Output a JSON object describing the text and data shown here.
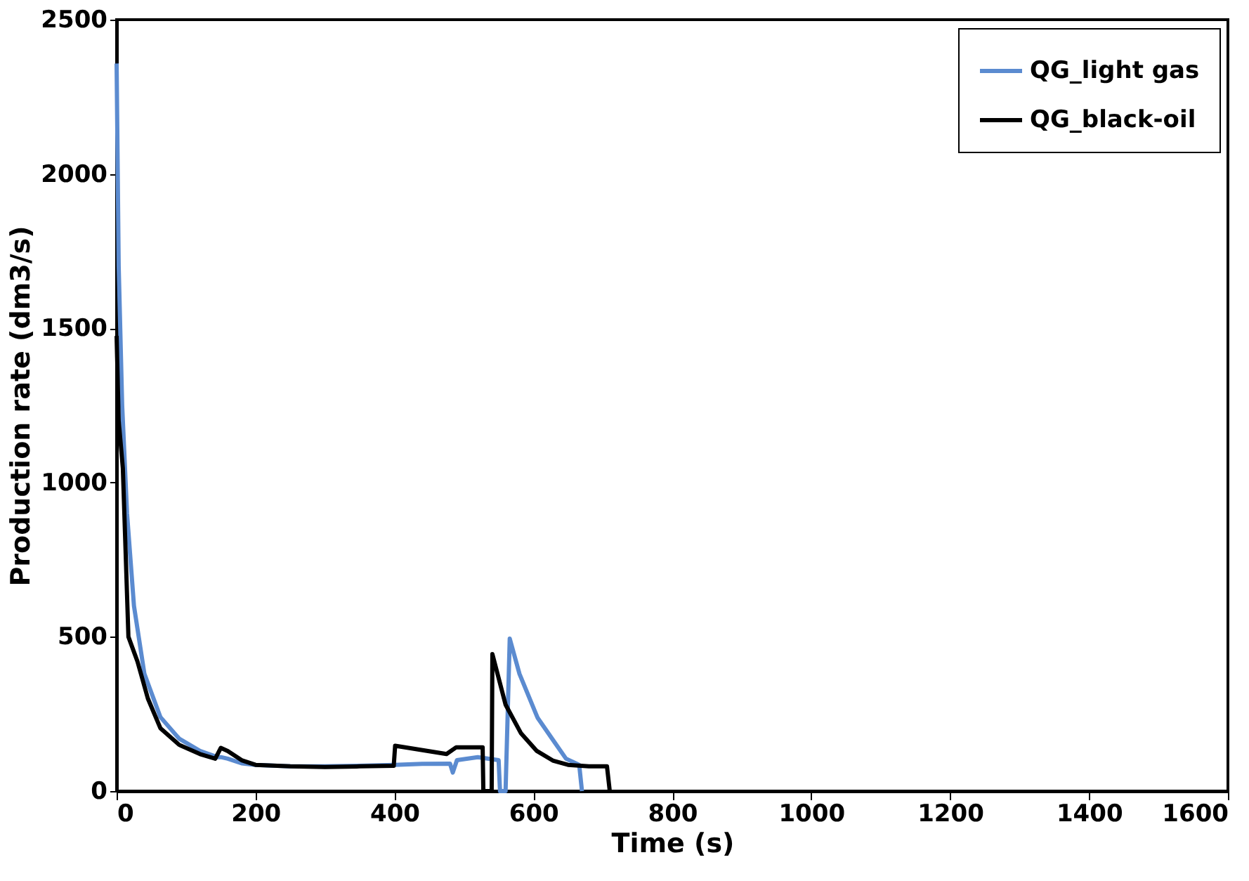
{
  "chart_data": {
    "type": "line",
    "xlabel": "Time (s)",
    "ylabel": "Production rate (dm3/s)",
    "xlim": [
      0,
      1600
    ],
    "ylim": [
      0,
      2500
    ],
    "xticks": [
      0,
      200,
      400,
      600,
      800,
      1000,
      1200,
      1400,
      1600
    ],
    "yticks": [
      0,
      500,
      1000,
      1500,
      2000,
      2500
    ],
    "grid": false,
    "legend": "top right",
    "marker": "none",
    "line_style": "solid",
    "series": [
      {
        "name": "QG_light gas",
        "color": "#5b8bd0",
        "x": [
          0,
          3,
          8,
          15,
          25,
          40,
          63,
          90,
          120,
          145,
          150,
          160,
          180,
          200,
          250,
          300,
          350,
          400,
          440,
          480,
          484,
          490,
          520,
          550,
          552,
          560,
          566,
          580,
          606,
          630,
          647,
          666,
          670
        ],
        "values": [
          2358,
          1700,
          1250,
          900,
          600,
          380,
          240,
          170,
          130,
          110,
          110,
          105,
          90,
          85,
          80,
          80,
          82,
          85,
          88,
          89,
          60,
          100,
          110,
          100,
          0,
          0,
          494,
          380,
          238,
          160,
          105,
          85,
          0
        ]
      },
      {
        "name": "QG_black-oil",
        "color": "#000000",
        "x": [
          0,
          3,
          9,
          17,
          30,
          45,
          63,
          90,
          120,
          142,
          150,
          160,
          180,
          200,
          250,
          300,
          350,
          399,
          401,
          420,
          475,
          489,
          527,
          528,
          540,
          541,
          560,
          582,
          605,
          628,
          650,
          680,
          706,
          710
        ],
        "values": [
          1475,
          1200,
          1046,
          500,
          420,
          300,
          204,
          150,
          120,
          105,
          140,
          130,
          100,
          85,
          80,
          78,
          80,
          82,
          147,
          140,
          120,
          142,
          142,
          0,
          0,
          444,
          280,
          188,
          130,
          99,
          85,
          80,
          80,
          0
        ]
      }
    ]
  }
}
